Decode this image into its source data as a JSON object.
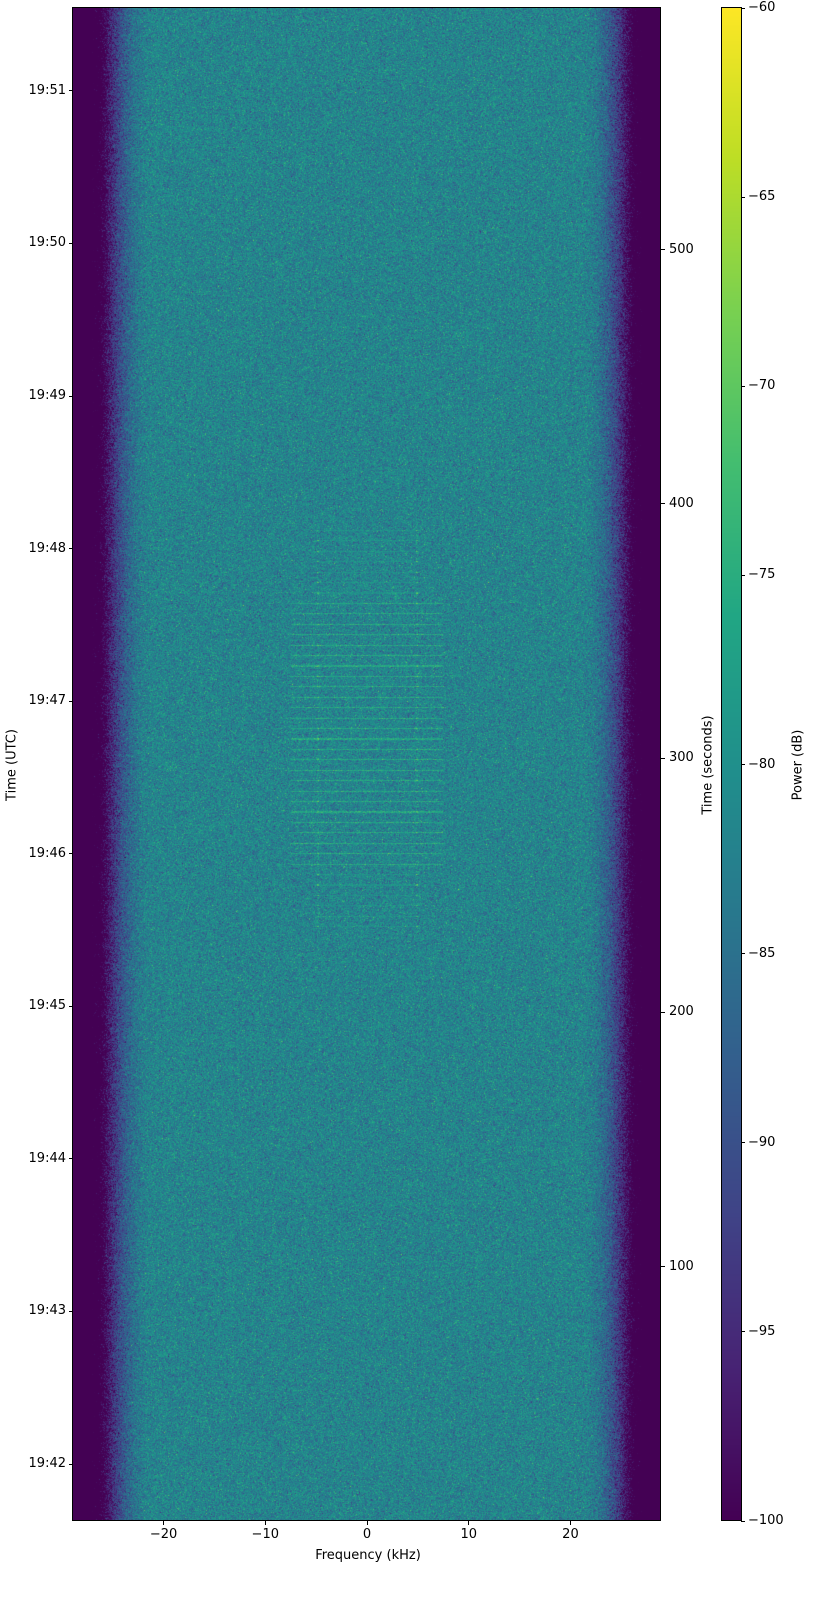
{
  "chart_data": {
    "type": "heatmap",
    "subtype": "spectrogram",
    "colormap": "viridis",
    "xlabel": "Frequency (kHz)",
    "ylabel_left": "Time (UTC)",
    "ylabel_right": "Time (seconds)",
    "colorbar_label": "Power (dB)",
    "xlim": [
      -28.9,
      28.9
    ],
    "ylim_seconds": [
      0,
      595
    ],
    "clim": [
      -100,
      -60
    ],
    "x_ticks": [
      -20,
      -10,
      0,
      10,
      20
    ],
    "x_tick_labels": [
      "−20",
      "−10",
      "0",
      "10",
      "20"
    ],
    "left_ticks_seconds": [
      22.4,
      82.4,
      142.4,
      202.4,
      262.4,
      322.4,
      382.4,
      442.4,
      502.4,
      562.4
    ],
    "left_tick_labels": [
      "19:42",
      "19:43",
      "19:44",
      "19:45",
      "19:46",
      "19:47",
      "19:48",
      "19:49",
      "19:50",
      "19:51"
    ],
    "right_ticks": [
      100,
      200,
      300,
      400,
      500
    ],
    "right_tick_labels": [
      "100",
      "200",
      "300",
      "400",
      "500"
    ],
    "colorbar_ticks": [
      -100,
      -95,
      -90,
      -85,
      -80,
      -75,
      -70,
      -65,
      -60
    ],
    "colorbar_tick_labels": [
      "−100",
      "−95",
      "−90",
      "−85",
      "−80",
      "−75",
      "−70",
      "−65",
      "−60"
    ],
    "noise_floor_db": -82,
    "out_of_band_db": -100,
    "passband_edge_khz": 25,
    "signal": {
      "freq_range_khz": [
        -4.8,
        4.9
      ],
      "carrier_lines_khz": [
        -4.8,
        4.9
      ],
      "time_range_seconds": [
        232,
        391
      ],
      "strong_time_range_seconds": [
        256,
        362
      ],
      "burst_period_seconds": 4.1,
      "peak_db": -72
    }
  }
}
